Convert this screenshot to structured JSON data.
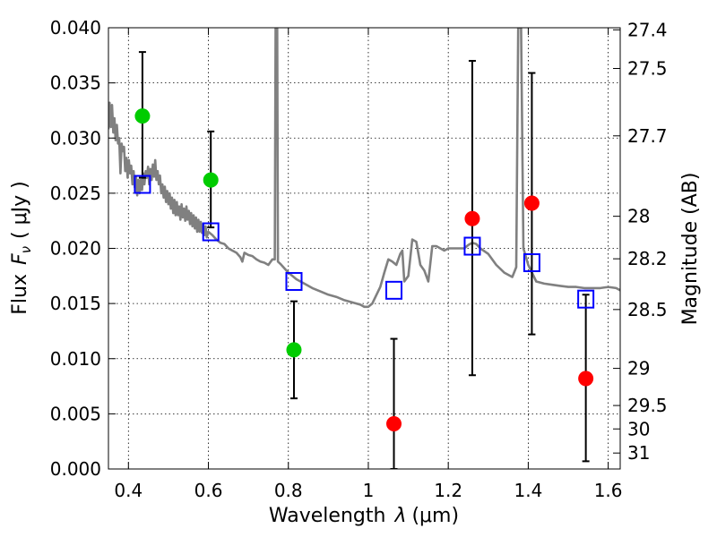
{
  "chart_data": {
    "type": "scatter",
    "xlabel_text": "Wavelength",
    "xlabel_symbol": "λ",
    "xlabel_unit": "(μm)",
    "ylabel_text": "Flux",
    "ylabel_symbol": "F",
    "ylabel_subscript": "ν",
    "ylabel_unit": "( μJy )",
    "y2label": "Magnitude (AB)",
    "xlim": [
      0.35,
      1.63
    ],
    "ylim": [
      0.0,
      0.04
    ],
    "x_ticks": [
      0.4,
      0.6,
      0.8,
      1.0,
      1.2,
      1.4,
      1.6
    ],
    "x_tick_labels": [
      "0.4",
      "0.6",
      "0.8",
      "1",
      "1.2",
      "1.4",
      "1.6"
    ],
    "y_ticks": [
      0.0,
      0.005,
      0.01,
      0.015,
      0.02,
      0.025,
      0.03,
      0.035,
      0.04
    ],
    "y_tick_labels": [
      "0.000",
      "0.005",
      "0.010",
      "0.015",
      "0.020",
      "0.025",
      "0.030",
      "0.035",
      "0.040"
    ],
    "y2_tick_labels": [
      "27.4",
      "27.5",
      "27.7",
      "28",
      "28.2",
      "28.5",
      "29",
      "29.5",
      "30",
      "31"
    ],
    "grid": true,
    "sed_color": "#808080",
    "sed": [
      [
        0.35,
        0.0308
      ],
      [
        0.353,
        0.0332
      ],
      [
        0.356,
        0.031
      ],
      [
        0.359,
        0.033
      ],
      [
        0.362,
        0.0305
      ],
      [
        0.365,
        0.0318
      ],
      [
        0.368,
        0.0298
      ],
      [
        0.371,
        0.0312
      ],
      [
        0.374,
        0.0295
      ],
      [
        0.377,
        0.03
      ],
      [
        0.38,
        0.0268
      ],
      [
        0.383,
        0.0295
      ],
      [
        0.386,
        0.0288
      ],
      [
        0.389,
        0.0292
      ],
      [
        0.392,
        0.027
      ],
      [
        0.395,
        0.0282
      ],
      [
        0.398,
        0.0264
      ],
      [
        0.401,
        0.028
      ],
      [
        0.404,
        0.0268
      ],
      [
        0.407,
        0.0275
      ],
      [
        0.41,
        0.0258
      ],
      [
        0.413,
        0.027
      ],
      [
        0.416,
        0.0255
      ],
      [
        0.419,
        0.0265
      ],
      [
        0.422,
        0.0248
      ],
      [
        0.425,
        0.0262
      ],
      [
        0.428,
        0.025
      ],
      [
        0.431,
        0.0262
      ],
      [
        0.434,
        0.0253
      ],
      [
        0.437,
        0.0268
      ],
      [
        0.44,
        0.0258
      ],
      [
        0.443,
        0.027
      ],
      [
        0.446,
        0.0264
      ],
      [
        0.449,
        0.0274
      ],
      [
        0.452,
        0.0258
      ],
      [
        0.455,
        0.0272
      ],
      [
        0.458,
        0.0262
      ],
      [
        0.461,
        0.0276
      ],
      [
        0.464,
        0.0265
      ],
      [
        0.467,
        0.028
      ],
      [
        0.47,
        0.0262
      ],
      [
        0.473,
        0.027
      ],
      [
        0.476,
        0.0258
      ],
      [
        0.479,
        0.0266
      ],
      [
        0.482,
        0.025
      ],
      [
        0.485,
        0.0258
      ],
      [
        0.488,
        0.0246
      ],
      [
        0.491,
        0.0256
      ],
      [
        0.494,
        0.0242
      ],
      [
        0.497,
        0.0252
      ],
      [
        0.5,
        0.024
      ],
      [
        0.503,
        0.025
      ],
      [
        0.506,
        0.0236
      ],
      [
        0.509,
        0.0246
      ],
      [
        0.512,
        0.0232
      ],
      [
        0.515,
        0.0244
      ],
      [
        0.518,
        0.023
      ],
      [
        0.521,
        0.0242
      ],
      [
        0.524,
        0.023
      ],
      [
        0.527,
        0.0238
      ],
      [
        0.53,
        0.0226
      ],
      [
        0.533,
        0.024
      ],
      [
        0.536,
        0.0228
      ],
      [
        0.539,
        0.0236
      ],
      [
        0.542,
        0.0225
      ],
      [
        0.545,
        0.0238
      ],
      [
        0.548,
        0.0226
      ],
      [
        0.551,
        0.0234
      ],
      [
        0.554,
        0.0222
      ],
      [
        0.557,
        0.0232
      ],
      [
        0.56,
        0.022
      ],
      [
        0.563,
        0.023
      ],
      [
        0.566,
        0.0218
      ],
      [
        0.569,
        0.0228
      ],
      [
        0.572,
        0.0215
      ],
      [
        0.575,
        0.0226
      ],
      [
        0.578,
        0.0215
      ],
      [
        0.581,
        0.0224
      ],
      [
        0.584,
        0.0214
      ],
      [
        0.587,
        0.0222
      ],
      [
        0.59,
        0.0212
      ],
      [
        0.593,
        0.022
      ],
      [
        0.596,
        0.021
      ],
      [
        0.6,
        0.0215
      ],
      [
        0.61,
        0.0212
      ],
      [
        0.62,
        0.0208
      ],
      [
        0.63,
        0.0205
      ],
      [
        0.64,
        0.0204
      ],
      [
        0.65,
        0.02
      ],
      [
        0.66,
        0.0198
      ],
      [
        0.67,
        0.0196
      ],
      [
        0.68,
        0.0192
      ],
      [
        0.685,
        0.0188
      ],
      [
        0.69,
        0.0196
      ],
      [
        0.7,
        0.0194
      ],
      [
        0.71,
        0.0193
      ],
      [
        0.72,
        0.019
      ],
      [
        0.73,
        0.0188
      ],
      [
        0.74,
        0.0187
      ],
      [
        0.75,
        0.0185
      ],
      [
        0.76,
        0.019
      ],
      [
        0.766,
        0.019
      ],
      [
        0.768,
        0.04
      ],
      [
        0.772,
        0.04
      ],
      [
        0.774,
        0.0188
      ],
      [
        0.78,
        0.0186
      ],
      [
        0.79,
        0.0182
      ],
      [
        0.8,
        0.0178
      ],
      [
        0.81,
        0.0175
      ],
      [
        0.82,
        0.0172
      ],
      [
        0.84,
        0.0168
      ],
      [
        0.86,
        0.0164
      ],
      [
        0.88,
        0.0161
      ],
      [
        0.9,
        0.0158
      ],
      [
        0.92,
        0.0156
      ],
      [
        0.94,
        0.0153
      ],
      [
        0.96,
        0.0151
      ],
      [
        0.98,
        0.0149
      ],
      [
        0.99,
        0.0147
      ],
      [
        1.0,
        0.0147
      ],
      [
        1.01,
        0.015
      ],
      [
        1.03,
        0.0165
      ],
      [
        1.04,
        0.0178
      ],
      [
        1.05,
        0.019
      ],
      [
        1.06,
        0.0188
      ],
      [
        1.07,
        0.0185
      ],
      [
        1.08,
        0.0195
      ],
      [
        1.085,
        0.0198
      ],
      [
        1.09,
        0.017
      ],
      [
        1.1,
        0.0175
      ],
      [
        1.11,
        0.0208
      ],
      [
        1.12,
        0.0206
      ],
      [
        1.13,
        0.0185
      ],
      [
        1.14,
        0.018
      ],
      [
        1.15,
        0.017
      ],
      [
        1.16,
        0.0202
      ],
      [
        1.17,
        0.0202
      ],
      [
        1.18,
        0.02
      ],
      [
        1.19,
        0.0198
      ],
      [
        1.2,
        0.02
      ],
      [
        1.22,
        0.02
      ],
      [
        1.24,
        0.02
      ],
      [
        1.25,
        0.0203
      ],
      [
        1.26,
        0.0205
      ],
      [
        1.27,
        0.0204
      ],
      [
        1.28,
        0.02
      ],
      [
        1.3,
        0.0195
      ],
      [
        1.32,
        0.0185
      ],
      [
        1.34,
        0.0178
      ],
      [
        1.36,
        0.0174
      ],
      [
        1.37,
        0.0183
      ],
      [
        1.375,
        0.04
      ],
      [
        1.382,
        0.04
      ],
      [
        1.388,
        0.02
      ],
      [
        1.4,
        0.0185
      ],
      [
        1.42,
        0.017
      ],
      [
        1.44,
        0.0168
      ],
      [
        1.46,
        0.0167
      ],
      [
        1.48,
        0.0166
      ],
      [
        1.5,
        0.0165
      ],
      [
        1.52,
        0.0165
      ],
      [
        1.54,
        0.0164
      ],
      [
        1.56,
        0.0164
      ],
      [
        1.58,
        0.0164
      ],
      [
        1.6,
        0.0165
      ],
      [
        1.62,
        0.0164
      ],
      [
        1.63,
        0.0162
      ]
    ],
    "series": [
      {
        "color": "#00cc00",
        "marker": "circle",
        "points": [
          {
            "x": 0.435,
            "y": 0.032,
            "ylo": 0.0264,
            "yhi": 0.0378
          },
          {
            "x": 0.606,
            "y": 0.0262,
            "ylo": 0.0219,
            "yhi": 0.0306
          },
          {
            "x": 0.814,
            "y": 0.0108,
            "ylo": 0.0064,
            "yhi": 0.0152
          }
        ]
      },
      {
        "color": "#ff0000",
        "marker": "circle",
        "points": [
          {
            "x": 1.064,
            "y": 0.0041,
            "ylo": 0.0,
            "yhi": 0.0118
          },
          {
            "x": 1.26,
            "y": 0.0227,
            "ylo": 0.0085,
            "yhi": 0.037
          },
          {
            "x": 1.409,
            "y": 0.0241,
            "ylo": 0.0122,
            "yhi": 0.0359
          },
          {
            "x": 1.544,
            "y": 0.0082,
            "ylo": 0.0007,
            "yhi": 0.0158
          }
        ]
      },
      {
        "color": "#0000ff",
        "marker": "open-square",
        "points": [
          {
            "x": 0.435,
            "y": 0.0258
          },
          {
            "x": 0.606,
            "y": 0.0215
          },
          {
            "x": 0.814,
            "y": 0.017
          },
          {
            "x": 1.064,
            "y": 0.0162
          },
          {
            "x": 1.26,
            "y": 0.0202
          },
          {
            "x": 1.409,
            "y": 0.0187
          },
          {
            "x": 1.544,
            "y": 0.0154
          }
        ]
      }
    ]
  }
}
